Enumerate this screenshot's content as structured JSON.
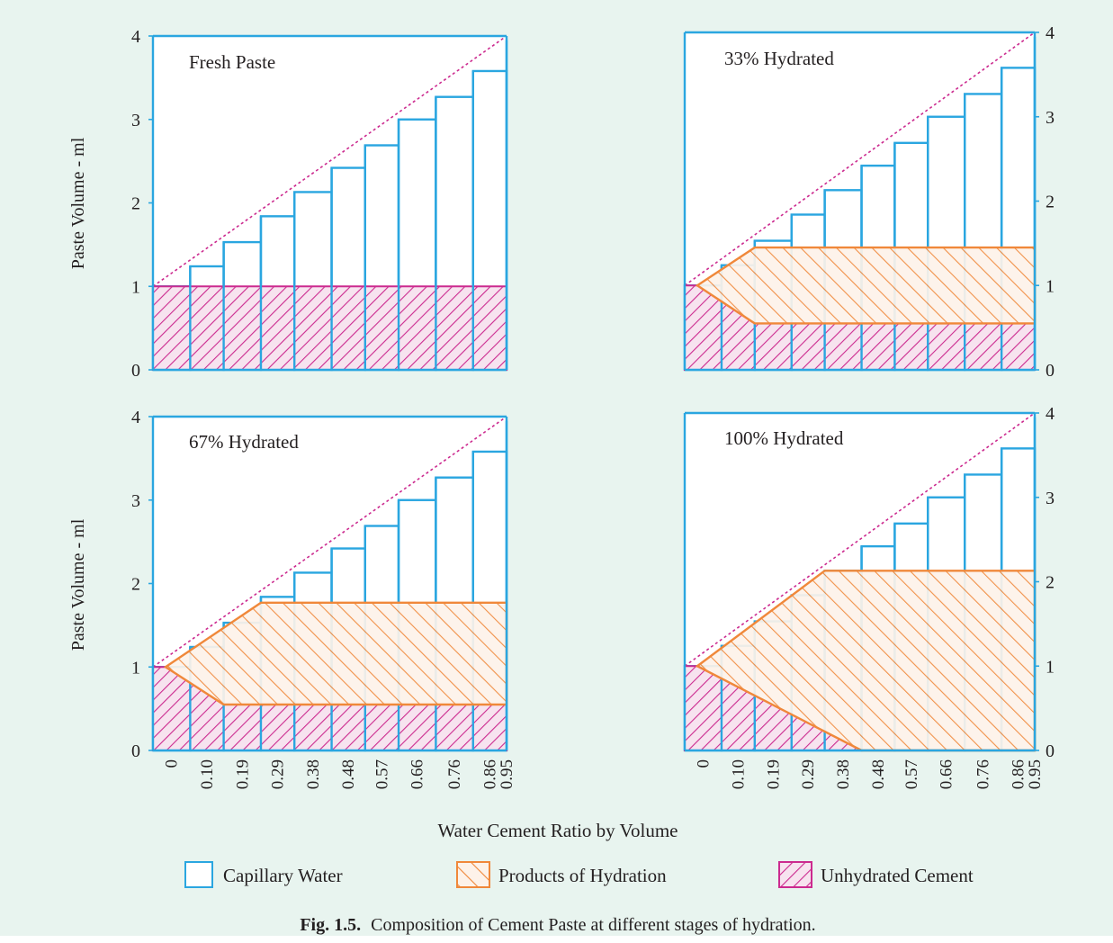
{
  "colors": {
    "background": "#e8f4ef",
    "capillary_water": "#2aa6e0",
    "products_of_hydration": "#f0883a",
    "unhydrated_cement": "#cc2a8f",
    "axis": "#2aa6e0",
    "text": "#231f20"
  },
  "figure": {
    "xlabel": "Water Cement Ratio by Volume",
    "ylabel": "Paste Volume - ml",
    "caption_bold": "Fig. 1.5.",
    "caption_text": "Composition of Cement Paste at different stages of hydration."
  },
  "legend": {
    "placement": "bottom",
    "items": [
      {
        "label": "Capillary Water",
        "pattern": "outline"
      },
      {
        "label": "Products of Hydration",
        "pattern": "hatch-backslash"
      },
      {
        "label": "Unhydrated Cement",
        "pattern": "hatch-slash"
      }
    ]
  },
  "chart_data": [
    {
      "type": "bar",
      "title": "Fresh Paste",
      "categories": [
        "0",
        "0.10",
        "0.19",
        "0.29",
        "0.38",
        "0.48",
        "0.57",
        "0.66",
        "0.76",
        "0.86",
        "0.95"
      ],
      "ylim": [
        0,
        4
      ],
      "yticks": [
        "0",
        "1",
        "2",
        "3",
        "4"
      ],
      "ytick_side": "left",
      "xticks_shown": false,
      "series": [
        {
          "name": "Capillary Water",
          "values": [
            1.0,
            1.24,
            1.53,
            1.84,
            2.13,
            2.42,
            2.69,
            3.0,
            3.27,
            3.58,
            3.95
          ]
        }
      ],
      "products_of_hydration": {
        "start_at_x0": 1.0,
        "top": 1.0,
        "bottom": 1.0
      },
      "unhydrated_cement": {
        "height": 1.0,
        "spans_all": true
      }
    },
    {
      "type": "bar",
      "title": "33% Hydrated",
      "categories": [
        "0",
        "0.10",
        "0.19",
        "0.29",
        "0.38",
        "0.48",
        "0.57",
        "0.66",
        "0.76",
        "0.86",
        "0.95"
      ],
      "ylim": [
        0,
        4
      ],
      "yticks": [
        "0",
        "1",
        "2",
        "3",
        "4"
      ],
      "ytick_side": "right",
      "xticks_shown": false,
      "series": [
        {
          "name": "Capillary Water",
          "values": [
            1.0,
            1.24,
            1.53,
            1.84,
            2.13,
            2.42,
            2.69,
            3.0,
            3.27,
            3.58,
            3.95
          ]
        }
      ],
      "products_of_hydration": {
        "start_at_x0": 1.0,
        "top": 1.45,
        "bottom": 0.55
      },
      "unhydrated_cement": {
        "height": 0.55,
        "spans_all": true
      }
    },
    {
      "type": "bar",
      "title": "67% Hydrated",
      "categories": [
        "0",
        "0.10",
        "0.19",
        "0.29",
        "0.38",
        "0.48",
        "0.57",
        "0.66",
        "0.76",
        "0.86",
        "0.95"
      ],
      "ylim": [
        0,
        4
      ],
      "yticks": [
        "0",
        "1",
        "2",
        "3",
        "4"
      ],
      "ytick_side": "left",
      "xticks_shown": true,
      "series": [
        {
          "name": "Capillary Water",
          "values": [
            1.0,
            1.24,
            1.53,
            1.84,
            2.13,
            2.42,
            2.69,
            3.0,
            3.27,
            3.58,
            3.95
          ]
        }
      ],
      "products_of_hydration": {
        "start_at_x0": 1.0,
        "top": 1.77,
        "bottom": 0.55
      },
      "unhydrated_cement": {
        "height": 0.55,
        "spans_all": true
      }
    },
    {
      "type": "bar",
      "title": "100% Hydrated",
      "categories": [
        "0",
        "0.10",
        "0.19",
        "0.29",
        "0.38",
        "0.48",
        "0.57",
        "0.66",
        "0.76",
        "0.86",
        "0.95"
      ],
      "ylim": [
        0,
        4
      ],
      "yticks": [
        "0",
        "1",
        "2",
        "3",
        "4"
      ],
      "ytick_side": "right",
      "xticks_shown": true,
      "series": [
        {
          "name": "Capillary Water",
          "values": [
            1.0,
            1.24,
            1.53,
            1.84,
            2.13,
            2.42,
            2.69,
            3.0,
            3.27,
            3.58,
            3.95
          ]
        }
      ],
      "products_of_hydration": {
        "start_at_x0": 1.0,
        "top": 2.13,
        "bottom": 0.0
      },
      "unhydrated_cement": {
        "height": 0.0,
        "spans_all": false
      }
    }
  ]
}
